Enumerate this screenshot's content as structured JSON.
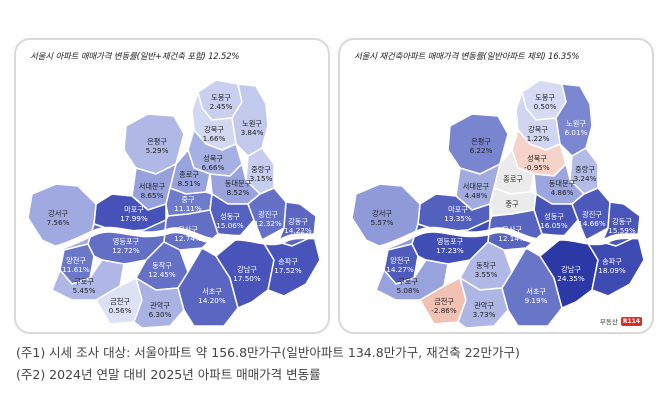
{
  "left_panel": {
    "title": "서울시 아파트 매매가격 변동률(일반+재건축 포함) 12.52%",
    "districts": [
      {
        "id": "dobong",
        "name": "도봉구",
        "value": "2.45%",
        "color": "#c9d0ef",
        "text": "#222"
      },
      {
        "id": "nowon",
        "name": "노원구",
        "value": "3.84%",
        "color": "#c2c9ec",
        "text": "#222"
      },
      {
        "id": "gangbuk",
        "name": "강북구",
        "value": "1.66%",
        "color": "#d3d8f2",
        "text": "#222"
      },
      {
        "id": "eunpyeong",
        "name": "은평구",
        "value": "5.29%",
        "color": "#b0b9e6",
        "text": "#222"
      },
      {
        "id": "seongbuk",
        "name": "성북구",
        "value": "6.66%",
        "color": "#a7b0e2",
        "text": "#222"
      },
      {
        "id": "jungnang",
        "name": "중랑구",
        "value": "3.15%",
        "color": "#c6cdee",
        "text": "#222"
      },
      {
        "id": "jongno",
        "name": "종로구",
        "value": "8.51%",
        "color": "#98a3dd",
        "text": "#222"
      },
      {
        "id": "seodaemun",
        "name": "서대문구",
        "value": "8.65%",
        "color": "#97a2dc",
        "text": "#222"
      },
      {
        "id": "dongdaemun",
        "name": "동대문구",
        "value": "8.52%",
        "color": "#98a3dd",
        "text": "#222"
      },
      {
        "id": "mapo",
        "name": "마포구",
        "value": "17.99%",
        "color": "#4652b8",
        "text": "#fff"
      },
      {
        "id": "jung",
        "name": "중구",
        "value": "11.11%",
        "color": "#6f7cca",
        "text": "#fff"
      },
      {
        "id": "seongdong",
        "name": "성동구",
        "value": "15.06%",
        "color": "#5561bf",
        "text": "#fff"
      },
      {
        "id": "gwangjin",
        "name": "광진구",
        "value": "12.32%",
        "color": "#6571c6",
        "text": "#fff"
      },
      {
        "id": "gangdong",
        "name": "강동구",
        "value": "14.22%",
        "color": "#5a66c1",
        "text": "#fff"
      },
      {
        "id": "gangseo",
        "name": "강서구",
        "value": "7.56%",
        "color": "#a0aae0",
        "text": "#222"
      },
      {
        "id": "yangcheon",
        "name": "양천구",
        "value": "11.61%",
        "color": "#6b78c9",
        "text": "#fff"
      },
      {
        "id": "yongsan",
        "name": "용산구",
        "value": "12.74%",
        "color": "#636fc5",
        "text": "#fff"
      },
      {
        "id": "yeongdeungpo",
        "name": "영등포구",
        "value": "12.72%",
        "color": "#636fc5",
        "text": "#fff"
      },
      {
        "id": "guro",
        "name": "구로구",
        "value": "5.45%",
        "color": "#aeb7e5",
        "text": "#222"
      },
      {
        "id": "dongjak",
        "name": "동작구",
        "value": "12.45%",
        "color": "#6571c6",
        "text": "#fff"
      },
      {
        "id": "geumcheon",
        "name": "금천구",
        "value": "0.56%",
        "color": "#dde1f5",
        "text": "#222"
      },
      {
        "id": "gwanak",
        "name": "관악구",
        "value": "6.30%",
        "color": "#a9b2e3",
        "text": "#222"
      },
      {
        "id": "seocho",
        "name": "서초구",
        "value": "14.20%",
        "color": "#5a66c1",
        "text": "#fff"
      },
      {
        "id": "gangnam",
        "name": "강남구",
        "value": "17.50%",
        "color": "#4854b9",
        "text": "#fff"
      },
      {
        "id": "songpa",
        "name": "송파구",
        "value": "17.52%",
        "color": "#4854b9",
        "text": "#fff"
      }
    ]
  },
  "right_panel": {
    "title": "서울시 재건축아파트 매매가격 변동률(일반아파트 제외) 16.35%",
    "districts": [
      {
        "id": "dobong",
        "name": "도봉구",
        "value": "0.50%",
        "color": "#d6dbf3",
        "text": "#222"
      },
      {
        "id": "nowon",
        "name": "노원구",
        "value": "6.01%",
        "color": "#7b87d0",
        "text": "#fff"
      },
      {
        "id": "gangbuk",
        "name": "강북구",
        "value": "1.22%",
        "color": "#d0d5f1",
        "text": "#222"
      },
      {
        "id": "eunpyeong",
        "name": "은평구",
        "value": "6.22%",
        "color": "#7985cf",
        "text": "#222"
      },
      {
        "id": "seongbuk",
        "name": "성북구",
        "value": "-0.95%",
        "color": "#f6d3c8",
        "text": "#222"
      },
      {
        "id": "jungnang",
        "name": "중랑구",
        "value": "3.24%",
        "color": "#b3bbe7",
        "text": "#222"
      },
      {
        "id": "jongno",
        "name": "종로구",
        "value": "",
        "color": "#ebebeb",
        "text": "#222"
      },
      {
        "id": "seodaemun",
        "name": "서대문구",
        "value": "4.48%",
        "color": "#a1abe0",
        "text": "#222"
      },
      {
        "id": "dongdaemun",
        "name": "동대문구",
        "value": "4.86%",
        "color": "#9ca6de",
        "text": "#222"
      },
      {
        "id": "mapo",
        "name": "마포구",
        "value": "13.35%",
        "color": "#5360be",
        "text": "#fff"
      },
      {
        "id": "jung",
        "name": "중구",
        "value": "",
        "color": "#ebebeb",
        "text": "#222"
      },
      {
        "id": "seongdong",
        "name": "성동구",
        "value": "16.05%",
        "color": "#4654b8",
        "text": "#fff"
      },
      {
        "id": "gwangjin",
        "name": "광진구",
        "value": "14.66%",
        "color": "#4d5abb",
        "text": "#fff"
      },
      {
        "id": "gangdong",
        "name": "강동구",
        "value": "15.59%",
        "color": "#4856b9",
        "text": "#fff"
      },
      {
        "id": "gangseo",
        "name": "강서구",
        "value": "5.57%",
        "color": "#8f9ad9",
        "text": "#222"
      },
      {
        "id": "yangcheon",
        "name": "양천구",
        "value": "14.27%",
        "color": "#4f5cbc",
        "text": "#fff"
      },
      {
        "id": "yongsan",
        "name": "용산구",
        "value": "12.14%",
        "color": "#5865c0",
        "text": "#fff"
      },
      {
        "id": "yeongdeungpo",
        "name": "영등포구",
        "value": "17.23%",
        "color": "#414eb5",
        "text": "#fff"
      },
      {
        "id": "guro",
        "name": "구로구",
        "value": "5.08%",
        "color": "#98a2dc",
        "text": "#222"
      },
      {
        "id": "dongjak",
        "name": "동작구",
        "value": "3.55%",
        "color": "#b0b8e6",
        "text": "#222"
      },
      {
        "id": "geumcheon",
        "name": "금천구",
        "value": "-2.86%",
        "color": "#f2c1b3",
        "text": "#222"
      },
      {
        "id": "gwanak",
        "name": "관악구",
        "value": "3.73%",
        "color": "#aeb6e5",
        "text": "#222"
      },
      {
        "id": "seocho",
        "name": "서초구",
        "value": "9.19%",
        "color": "#6975c7",
        "text": "#fff"
      },
      {
        "id": "gangnam",
        "name": "강남구",
        "value": "24.35%",
        "color": "#2b38a6",
        "text": "#fff"
      },
      {
        "id": "songpa",
        "name": "송파구",
        "value": "18.09%",
        "color": "#3d4ab2",
        "text": "#fff"
      }
    ],
    "logo": {
      "text": "부동산",
      "badge": "R114"
    }
  },
  "notes": {
    "note1": "(주1) 시세 조사 대상: 서울아파트 약 156.8만가구(일반아파트 134.8만가구, 재건축 22만가구)",
    "note2": "(주2) 2024년 연말 대비 2025년 아파트 매매가격 변동률"
  },
  "colors": {
    "river": "#ffffff",
    "border": "#ffffff",
    "panel_border": "#d9d9d9"
  }
}
